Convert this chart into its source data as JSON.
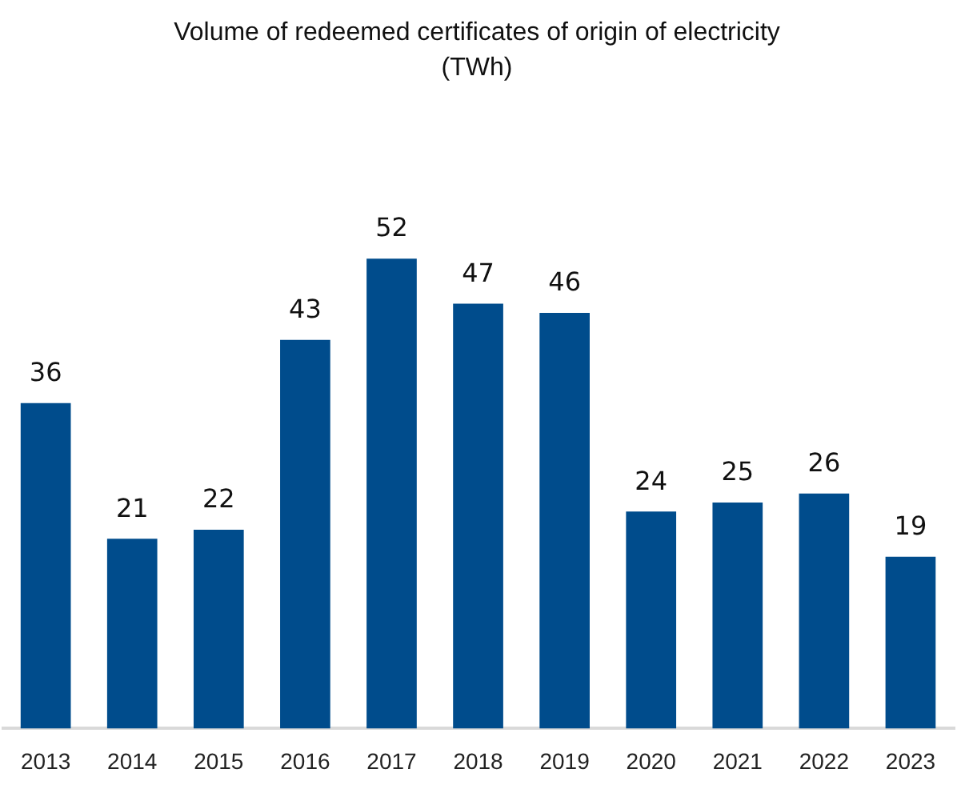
{
  "chart_data": {
    "type": "bar",
    "title": "Volume of redeemed certificates of origin of electricity",
    "subtitle": "(TWh)",
    "categories": [
      "2013",
      "2014",
      "2015",
      "2016",
      "2017",
      "2018",
      "2019",
      "2020",
      "2021",
      "2022",
      "2023"
    ],
    "values": [
      36,
      21,
      22,
      43,
      52,
      47,
      46,
      24,
      25,
      26,
      19
    ],
    "color": "#004c8c",
    "data_labels": true,
    "tick_labels": "x",
    "grid": false
  }
}
